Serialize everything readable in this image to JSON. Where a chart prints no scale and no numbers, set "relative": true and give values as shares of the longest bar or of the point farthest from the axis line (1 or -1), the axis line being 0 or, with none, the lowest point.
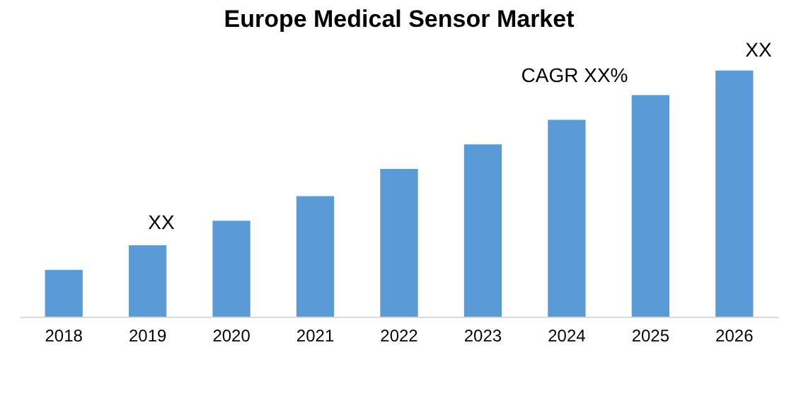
{
  "chart_data": {
    "type": "bar",
    "title": "Europe Medical Sensor Market",
    "relative": true,
    "categories": [
      "2018",
      "2019",
      "2020",
      "2021",
      "2022",
      "2023",
      "2024",
      "2025",
      "2026"
    ],
    "values": [
      0.19,
      0.29,
      0.39,
      0.49,
      0.6,
      0.7,
      0.8,
      0.9,
      1
    ],
    "color": "#5b9bd5",
    "annotations": [
      "XX",
      "CAGR XX%",
      "XX"
    ]
  }
}
